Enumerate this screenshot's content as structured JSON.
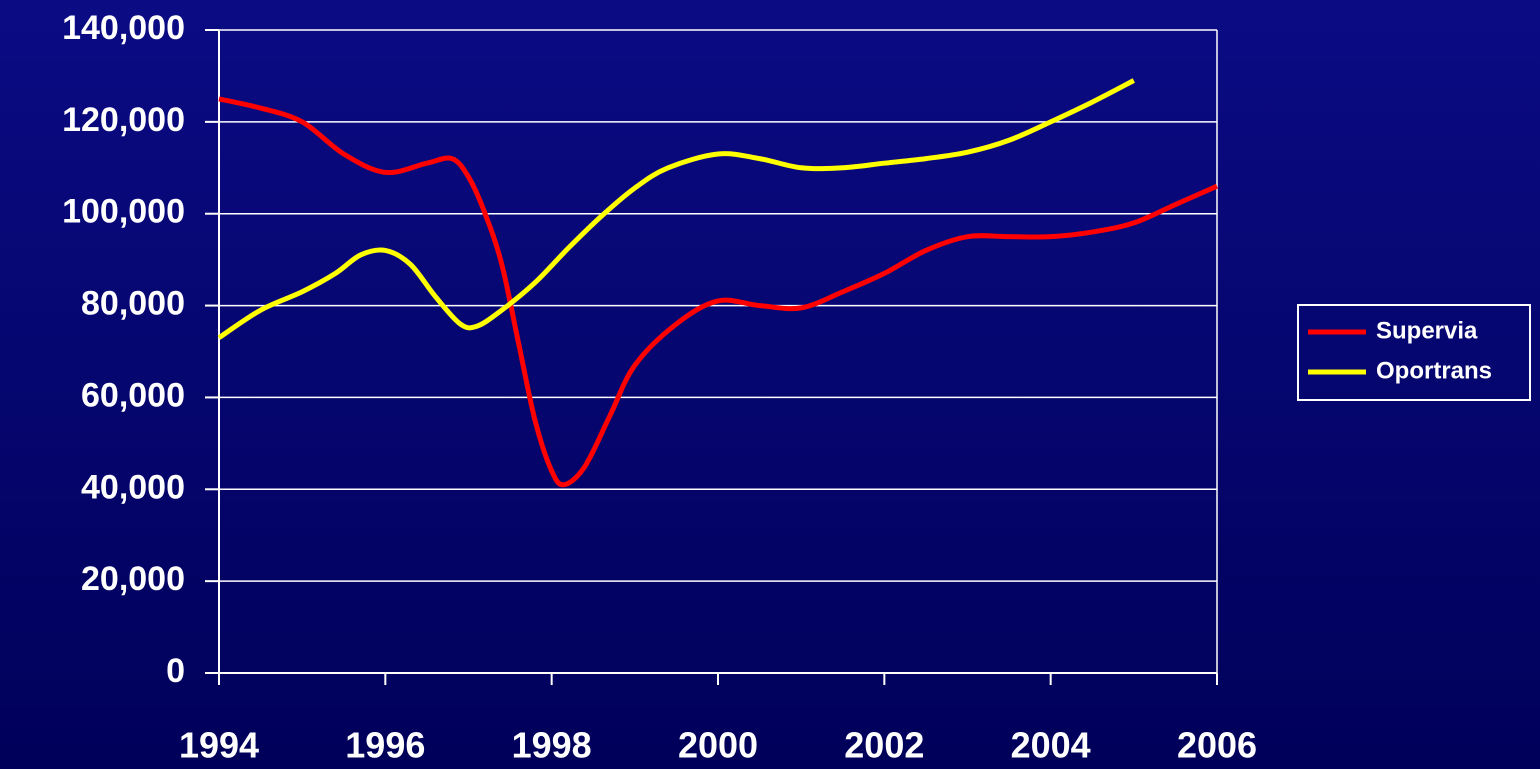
{
  "chart_data": {
    "type": "line",
    "xlim": [
      1994,
      2006
    ],
    "xticks": [
      1994,
      1996,
      1998,
      2000,
      2002,
      2004,
      2006
    ],
    "ylim": [
      0,
      140000
    ],
    "yticks": [
      {
        "value": 0,
        "label": "0"
      },
      {
        "value": 20000,
        "label": "20,000"
      },
      {
        "value": 40000,
        "label": "40,000"
      },
      {
        "value": 60000,
        "label": "60,000"
      },
      {
        "value": 80000,
        "label": "80,000"
      },
      {
        "value": 100000,
        "label": "100,000"
      },
      {
        "value": 120000,
        "label": "120,000"
      },
      {
        "value": 140000,
        "label": "140,000"
      }
    ],
    "grid": true,
    "legend": "right",
    "series": [
      {
        "name": "Supervia",
        "color": "#ff0000",
        "x": [
          1994,
          1994.5,
          1995,
          1995.5,
          1996,
          1996.5,
          1996.8,
          1997,
          1997.2,
          1997.4,
          1997.6,
          1997.8,
          1998,
          1998.15,
          1998.4,
          1998.7,
          1999,
          1999.5,
          2000,
          2000.5,
          2001,
          2001.5,
          2002,
          2002.5,
          2003,
          2003.5,
          2004,
          2004.5,
          2005,
          2005.5,
          2006
        ],
        "values": [
          125000,
          123000,
          120000,
          113000,
          109000,
          111000,
          112000,
          108000,
          100000,
          89000,
          72000,
          55000,
          44000,
          41000,
          45000,
          56000,
          67000,
          76000,
          81000,
          80000,
          79500,
          83000,
          87000,
          92000,
          95000,
          95000,
          95000,
          96000,
          98000,
          102000,
          106000
        ]
      },
      {
        "name": "Oportrans",
        "color": "#ffff00",
        "x": [
          1994,
          1994.5,
          1995,
          1995.4,
          1995.7,
          1996,
          1996.3,
          1996.6,
          1996.9,
          1997.1,
          1997.4,
          1997.8,
          1998.2,
          1998.6,
          1999,
          1999.4,
          2000,
          2000.5,
          2001,
          2001.5,
          2002,
          2002.5,
          2003,
          2003.5,
          2004,
          2004.5,
          2005
        ],
        "values": [
          73000,
          79000,
          83000,
          87000,
          91000,
          92000,
          89000,
          82000,
          76000,
          75500,
          79000,
          85000,
          92500,
          99500,
          105600,
          110000,
          113000,
          112000,
          110000,
          110000,
          111000,
          112000,
          113400,
          116000,
          120000,
          124300,
          129000
        ]
      }
    ]
  }
}
